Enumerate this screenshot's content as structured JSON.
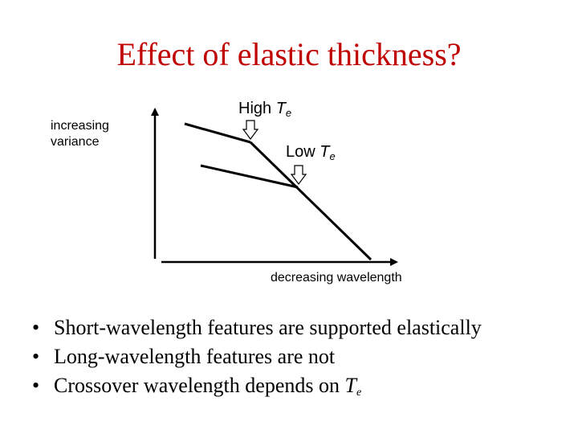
{
  "title": "Effect of elastic thickness?",
  "title_color": "#c00000",
  "diagram": {
    "y_axis_label": "increasing variance",
    "x_axis_label": "decreasing wavelength",
    "high_te": {
      "prefix": "High ",
      "symbol": "T",
      "subscript": "e"
    },
    "low_te": {
      "prefix": "Low ",
      "symbol": "T",
      "subscript": "e"
    },
    "line_color": "#000000",
    "arrow_icon": "down-arrow-outline-icon"
  },
  "bullets": [
    {
      "marker": "•",
      "text": "Short-wavelength features are supported elastically"
    },
    {
      "marker": "•",
      "text": "Long-wavelength features are not"
    },
    {
      "marker": "•",
      "text": "Crossover wavelength depends on ",
      "symbol": "T",
      "subscript": "e"
    }
  ]
}
